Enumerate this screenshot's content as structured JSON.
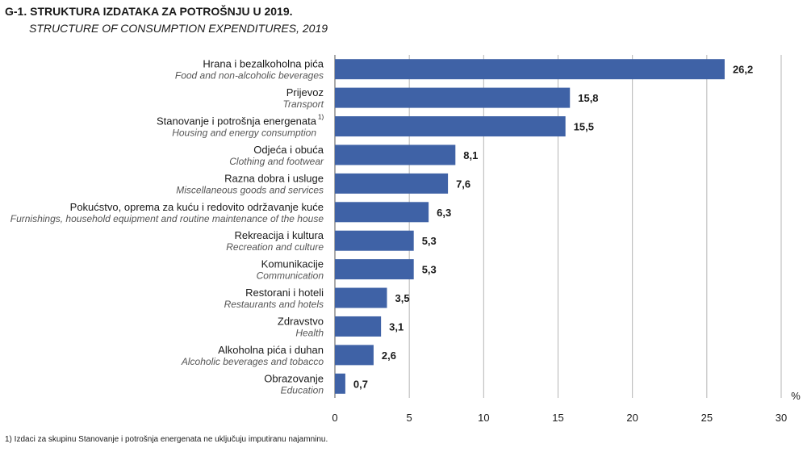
{
  "title": "G-1. STRUKTURA IZDATAKA ZA POTROŠNJU U 2019.",
  "subtitle": "STRUCTURE OF CONSUMPTION EXPENDITURES, 2019",
  "footnote": "1) Izdaci za skupinu Stanovanje i potrošnja energenata ne uključuju imputiranu najamninu.",
  "colors": {
    "bar": "#3f62a6",
    "grid": "#b5b5b5",
    "axis": "#555555"
  },
  "chart_data": {
    "type": "bar",
    "orientation": "horizontal",
    "categories": [
      {
        "label": "Hrana i bezalkoholna pića",
        "label_en": "Food and non-alcoholic beverages",
        "note": ""
      },
      {
        "label": "Prijevoz",
        "label_en": "Transport",
        "note": ""
      },
      {
        "label": "Stanovanje i potrošnja energenata",
        "label_en": "Housing and energy consumption",
        "note": "1)"
      },
      {
        "label": "Odjeća i obuća",
        "label_en": "Clothing and footwear",
        "note": ""
      },
      {
        "label": "Razna dobra i usluge",
        "label_en": "Miscellaneous goods and services",
        "note": ""
      },
      {
        "label": "Pokućstvo, oprema za kuću i redovito održavanje kuće",
        "label_en": "Furnishings, household equipment and routine maintenance of the house",
        "note": ""
      },
      {
        "label": "Rekreacija i kultura",
        "label_en": "Recreation and culture",
        "note": ""
      },
      {
        "label": "Komunikacije",
        "label_en": "Communication",
        "note": ""
      },
      {
        "label": "Restorani i hoteli",
        "label_en": "Restaurants and hotels",
        "note": ""
      },
      {
        "label": "Zdravstvo",
        "label_en": "Health",
        "note": ""
      },
      {
        "label": "Alkoholna pića i duhan",
        "label_en": "Alcoholic beverages and tobacco",
        "note": ""
      },
      {
        "label": "Obrazovanje",
        "label_en": "Education",
        "note": ""
      }
    ],
    "values": [
      26.2,
      15.8,
      15.5,
      8.1,
      7.6,
      6.3,
      5.3,
      5.3,
      3.5,
      3.1,
      2.6,
      0.7
    ],
    "value_labels": [
      "26,2",
      "15,8",
      "15,5",
      "8,1",
      "7,6",
      "6,3",
      "5,3",
      "5,3",
      "3,5",
      "3,1",
      "2,6",
      "0,7"
    ],
    "xlim": [
      0,
      30
    ],
    "xticks": [
      0,
      5,
      10,
      15,
      20,
      25,
      30
    ],
    "xunit": "%",
    "grid": "vertical"
  }
}
